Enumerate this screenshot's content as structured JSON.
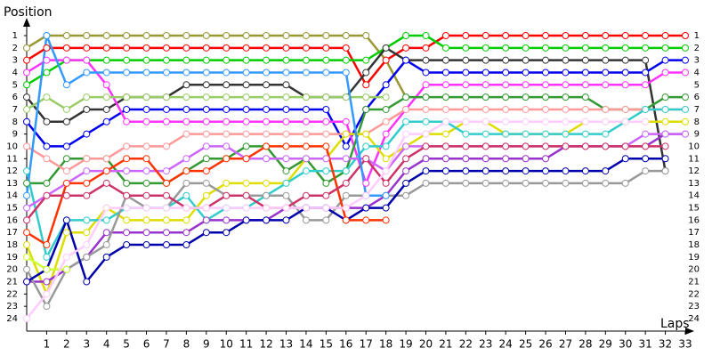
{
  "chart_data": {
    "type": "line",
    "y_label": "Position",
    "x_label": "Laps",
    "x": [
      0,
      1,
      2,
      3,
      4,
      5,
      6,
      7,
      8,
      9,
      10,
      11,
      12,
      13,
      14,
      15,
      16,
      17,
      18,
      19,
      20,
      21,
      22,
      23,
      24,
      25,
      26,
      27,
      28,
      29,
      30,
      31,
      32,
      33
    ],
    "xlim": [
      0,
      33
    ],
    "xticks": [
      1,
      2,
      3,
      4,
      5,
      6,
      7,
      8,
      9,
      10,
      11,
      12,
      13,
      14,
      15,
      16,
      17,
      18,
      19,
      20,
      21,
      22,
      23,
      24,
      25,
      26,
      27,
      28,
      29,
      30,
      31,
      32,
      33
    ],
    "ylim": [
      1,
      24
    ],
    "y_inverted": true,
    "yticks": [
      1,
      2,
      3,
      4,
      5,
      6,
      7,
      8,
      9,
      10,
      11,
      12,
      13,
      14,
      15,
      16,
      17,
      18,
      19,
      20,
      21,
      22,
      23,
      24
    ],
    "markers": true,
    "series": [
      {
        "color": "#999933",
        "values": [
          2,
          1,
          1,
          1,
          1,
          1,
          1,
          1,
          1,
          1,
          1,
          1,
          1,
          1,
          1,
          1,
          1,
          1,
          3,
          6,
          null,
          null,
          null,
          null,
          null,
          null,
          null,
          null,
          null,
          null,
          null,
          null,
          null,
          null
        ]
      },
      {
        "color": "#ff0000",
        "values": [
          3,
          2,
          2,
          2,
          2,
          2,
          2,
          2,
          2,
          2,
          2,
          2,
          2,
          2,
          2,
          2,
          2,
          5,
          3,
          2,
          2,
          1,
          1,
          1,
          1,
          1,
          1,
          1,
          1,
          1,
          1,
          1,
          1,
          1
        ]
      },
      {
        "color": "#00cc00",
        "values": [
          5,
          4,
          3,
          3,
          3,
          3,
          3,
          3,
          3,
          3,
          3,
          3,
          3,
          3,
          3,
          3,
          3,
          3,
          2,
          1,
          1,
          2,
          2,
          2,
          2,
          2,
          2,
          2,
          2,
          2,
          2,
          2,
          2,
          2
        ]
      },
      {
        "color": "#333333",
        "values": [
          6,
          8,
          8,
          7,
          7,
          6,
          6,
          6,
          5,
          5,
          5,
          5,
          5,
          5,
          6,
          6,
          6,
          4,
          2,
          3,
          3,
          3,
          3,
          3,
          3,
          3,
          3,
          3,
          3,
          3,
          3,
          3,
          12,
          null
        ]
      },
      {
        "color": "#0000ee",
        "values": [
          8,
          10,
          10,
          9,
          8,
          7,
          7,
          7,
          7,
          7,
          7,
          7,
          7,
          7,
          7,
          7,
          10,
          7,
          5,
          3,
          4,
          4,
          4,
          4,
          4,
          4,
          4,
          4,
          4,
          4,
          4,
          4,
          3,
          3
        ]
      },
      {
        "color": "#ff33ff",
        "values": [
          4,
          3,
          3,
          3,
          5,
          8,
          8,
          8,
          8,
          8,
          8,
          8,
          8,
          8,
          8,
          8,
          8,
          13,
          9,
          7,
          5,
          5,
          5,
          5,
          5,
          5,
          5,
          5,
          5,
          5,
          5,
          5,
          4,
          4
        ]
      },
      {
        "color": "#339933",
        "values": [
          13,
          13,
          11,
          11,
          11,
          13,
          13,
          13,
          12,
          11,
          11,
          10,
          10,
          12,
          11,
          13,
          12,
          7,
          7,
          6,
          6,
          6,
          6,
          6,
          6,
          6,
          6,
          6,
          6,
          7,
          7,
          7,
          6,
          6
        ]
      },
      {
        "color": "#ff9999",
        "values": [
          10,
          11,
          12,
          11,
          11,
          10,
          10,
          10,
          9,
          9,
          9,
          9,
          9,
          9,
          9,
          9,
          9,
          9,
          8,
          7,
          7,
          7,
          7,
          7,
          7,
          7,
          7,
          7,
          7,
          7,
          7,
          7,
          7,
          7
        ]
      },
      {
        "color": "#dddd00",
        "values": [
          18,
          22,
          17,
          17,
          15,
          16,
          16,
          16,
          16,
          14,
          13,
          13,
          13,
          13,
          11,
          11,
          9,
          9,
          11,
          10,
          9,
          9,
          8,
          8,
          9,
          9,
          9,
          9,
          8,
          8,
          8,
          8,
          8,
          8
        ]
      },
      {
        "color": "#33cccc",
        "values": [
          12,
          19,
          16,
          16,
          16,
          15,
          15,
          15,
          14,
          16,
          15,
          15,
          14,
          13,
          12,
          12,
          12,
          10,
          10,
          8,
          8,
          8,
          9,
          9,
          9,
          9,
          9,
          9,
          9,
          9,
          8,
          7,
          7,
          7
        ]
      },
      {
        "color": "#9933cc",
        "values": [
          21,
          21,
          20,
          19,
          17,
          17,
          17,
          17,
          17,
          16,
          16,
          16,
          16,
          15,
          15,
          15,
          15,
          15,
          14,
          12,
          11,
          11,
          11,
          11,
          11,
          11,
          11,
          10,
          10,
          10,
          10,
          10,
          9,
          9
        ]
      },
      {
        "color": "#cc66ff",
        "values": [
          15,
          14,
          13,
          12,
          12,
          12,
          12,
          12,
          11,
          10,
          10,
          11,
          11,
          11,
          11,
          11,
          11,
          11,
          12,
          10,
          10,
          10,
          10,
          10,
          10,
          10,
          10,
          10,
          10,
          10,
          10,
          9,
          9,
          9
        ]
      },
      {
        "color": "#99cc66",
        "values": [
          7,
          6,
          7,
          6,
          6,
          6,
          6,
          6,
          6,
          6,
          6,
          6,
          6,
          6,
          6,
          6,
          6,
          6,
          6,
          null,
          null,
          null,
          null,
          null,
          null,
          null,
          null,
          null,
          null,
          null,
          null,
          null,
          null,
          null
        ]
      },
      {
        "color": "#999999",
        "values": [
          20,
          23,
          20,
          19,
          18,
          14,
          15,
          15,
          13,
          13,
          14,
          14,
          14,
          14,
          16,
          16,
          14,
          14,
          14,
          14,
          13,
          13,
          13,
          13,
          13,
          13,
          13,
          13,
          13,
          13,
          13,
          12,
          12,
          null
        ]
      },
      {
        "color": "#0000aa",
        "values": [
          21,
          20,
          16,
          21,
          19,
          18,
          18,
          18,
          18,
          17,
          17,
          16,
          16,
          16,
          15,
          15,
          16,
          15,
          15,
          13,
          12,
          12,
          12,
          12,
          12,
          12,
          12,
          12,
          12,
          12,
          11,
          11,
          11,
          null
        ]
      },
      {
        "color": "#ff3300",
        "values": [
          17,
          18,
          13,
          13,
          12,
          11,
          11,
          13,
          12,
          12,
          11,
          11,
          10,
          10,
          10,
          10,
          16,
          16,
          16,
          null,
          null,
          null,
          null,
          null,
          null,
          null,
          null,
          null,
          null,
          null,
          null,
          null,
          null,
          null
        ]
      },
      {
        "color": "#cc3366",
        "values": [
          16,
          14,
          14,
          14,
          13,
          14,
          14,
          14,
          15,
          15,
          14,
          14,
          15,
          15,
          14,
          14,
          13,
          11,
          13,
          11,
          10,
          10,
          10,
          10,
          10,
          10,
          10,
          10,
          10,
          10,
          10,
          10,
          10,
          null
        ]
      },
      {
        "color": "#3399ff",
        "values": [
          14,
          1,
          5,
          4,
          4,
          4,
          4,
          4,
          4,
          4,
          4,
          4,
          4,
          4,
          4,
          4,
          4,
          14,
          14,
          null,
          null,
          null,
          null,
          null,
          null,
          null,
          null,
          null,
          null,
          null,
          null,
          null,
          null,
          null
        ]
      },
      {
        "color": "#ccff33",
        "values": [
          19,
          20,
          20,
          null,
          null,
          null,
          null,
          null,
          null,
          null,
          null,
          null,
          null,
          null,
          null,
          null,
          null,
          null,
          null,
          null,
          null,
          null,
          null,
          null,
          null,
          null,
          null,
          null,
          null,
          null,
          null,
          null,
          null,
          null
        ]
      },
      {
        "color": "#ffccff",
        "values": [
          24,
          22,
          19,
          18,
          15,
          15,
          15,
          15,
          15,
          15,
          15,
          15,
          15,
          15,
          15,
          15,
          15,
          14,
          12,
          9,
          9,
          8,
          8,
          8,
          8,
          8,
          8,
          8,
          8,
          8,
          8,
          8,
          null,
          null
        ]
      }
    ]
  }
}
